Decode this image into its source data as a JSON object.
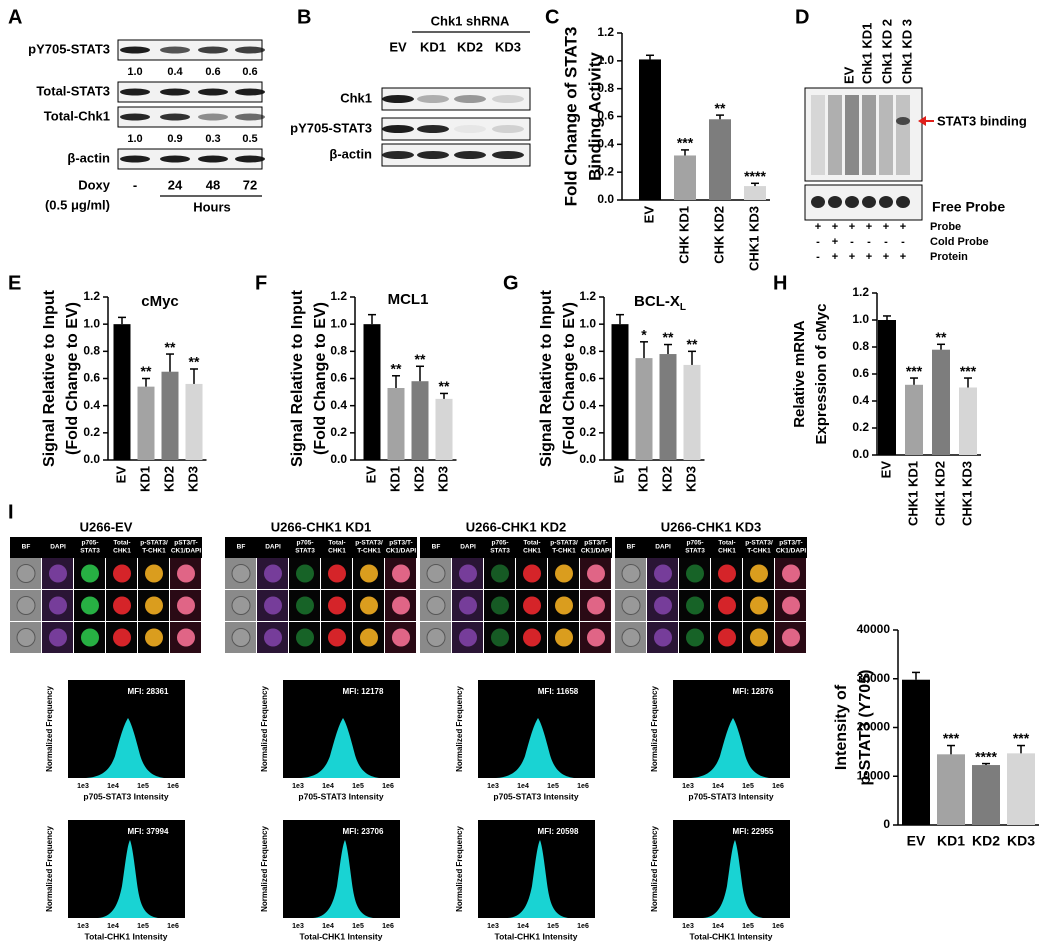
{
  "panel_labels": [
    "A",
    "B",
    "C",
    "D",
    "E",
    "F",
    "G",
    "H",
    "I"
  ],
  "panel_a": {
    "rows": [
      "pY705-STAT3",
      "Total-STAT3",
      "Total-Chk1",
      "β-actin"
    ],
    "quant_py705": [
      "1.0",
      "0.4",
      "0.6",
      "0.6"
    ],
    "quant_chk1": [
      "1.0",
      "0.9",
      "0.3",
      "0.5"
    ],
    "treatment": "Doxy",
    "dose": "(0.5 μg/ml)",
    "times": [
      "-",
      "24",
      "48",
      "72"
    ],
    "time_unit": "Hours"
  },
  "panel_b": {
    "group": "Chk1 shRNA",
    "lanes": [
      "EV",
      "KD1",
      "KD2",
      "KD3"
    ],
    "rows": [
      "Chk1",
      "pY705-STAT3",
      "β-actin"
    ]
  },
  "panel_d": {
    "lanes": [
      "EV",
      "Chk1 KD1",
      "Chk1 KD 2",
      "Chk1 KD 3"
    ],
    "band_label": "STAT3 binding",
    "free_probe": "Free Probe",
    "conditions": [
      {
        "name": "Probe",
        "signs": [
          "+",
          "+",
          "+",
          "+",
          "+",
          "+"
        ]
      },
      {
        "name": "Cold Probe",
        "signs": [
          "-",
          "+",
          "-",
          "-",
          "-",
          "-"
        ]
      },
      {
        "name": "Protein",
        "signs": [
          "-",
          "+",
          "+",
          "+",
          "+",
          "+"
        ]
      }
    ]
  },
  "chart_data": [
    {
      "type": "bar",
      "ylabel": [
        "Fold Change of STAT3",
        "Binding Activity"
      ],
      "categories": [
        "EV",
        "CHK KD1",
        "CHK KD2",
        "CHK1 KD3"
      ],
      "values": [
        1.01,
        0.32,
        0.58,
        0.1
      ],
      "errors": [
        0.03,
        0.04,
        0.03,
        0.02
      ],
      "significance": [
        null,
        "***",
        "**",
        "****"
      ],
      "colors": [
        "#000000",
        "#a3a3a3",
        "#7d7d7d",
        "#d6d6d6"
      ],
      "ylim": [
        0,
        1.2
      ],
      "yticks": [
        {
          "value": 0,
          "label": "0.0"
        },
        0.2,
        0.4,
        0.6,
        0.8,
        {
          "value": 1,
          "label": "1.0"
        },
        1.2
      ]
    },
    {
      "type": "bar",
      "title": "cMyc",
      "ylabel": [
        "Signal Relative to Input",
        "(Fold Change to EV)"
      ],
      "categories": [
        "EV",
        "KD1",
        "KD2",
        "KD3"
      ],
      "values": [
        1.0,
        0.54,
        0.65,
        0.56
      ],
      "errors": [
        0.05,
        0.06,
        0.13,
        0.11
      ],
      "significance": [
        null,
        "**",
        "**",
        "**"
      ],
      "colors": [
        "#000000",
        "#a3a3a3",
        "#7d7d7d",
        "#d6d6d6"
      ],
      "ylim": [
        0,
        1.2
      ],
      "yticks": [
        {
          "value": 0,
          "label": "0.0"
        },
        0.2,
        0.4,
        0.6,
        0.8,
        {
          "value": 1,
          "label": "1.0"
        },
        1.2
      ]
    },
    {
      "type": "bar",
      "title": "MCL1",
      "ylabel": [
        "Signal Relative to Input",
        "(Fold Change to EV)"
      ],
      "categories": [
        "EV",
        "KD1",
        "KD2",
        "KD3"
      ],
      "values": [
        1.0,
        0.53,
        0.58,
        0.45
      ],
      "errors": [
        0.07,
        0.09,
        0.11,
        0.04
      ],
      "significance": [
        null,
        "**",
        "**",
        "**"
      ],
      "colors": [
        "#000000",
        "#a3a3a3",
        "#7d7d7d",
        "#d6d6d6"
      ],
      "ylim": [
        0,
        1.2
      ],
      "yticks": [
        {
          "value": 0,
          "label": "0.0"
        },
        0.2,
        0.4,
        0.6,
        0.8,
        {
          "value": 1,
          "label": "1.0"
        },
        1.2
      ]
    },
    {
      "type": "bar",
      "title": "BCL-X",
      "title_subscript": "L",
      "ylabel": [
        "Signal Relative to Input",
        "(Fold Change to EV)"
      ],
      "categories": [
        "EV",
        "KD1",
        "KD2",
        "KD3"
      ],
      "values": [
        1.0,
        0.75,
        0.78,
        0.7
      ],
      "errors": [
        0.07,
        0.12,
        0.07,
        0.1
      ],
      "significance": [
        null,
        "*",
        "**",
        "**"
      ],
      "colors": [
        "#000000",
        "#a3a3a3",
        "#7d7d7d",
        "#d6d6d6"
      ],
      "ylim": [
        0,
        1.2
      ],
      "yticks": [
        {
          "value": 0,
          "label": "0.0"
        },
        0.2,
        0.4,
        0.6,
        0.8,
        {
          "value": 1,
          "label": "1.0"
        },
        1.2
      ]
    },
    {
      "type": "bar",
      "ylabel": [
        "Relative mRNA",
        "Expression of cMyc"
      ],
      "categories": [
        "EV",
        "CHK1 KD1",
        "CHK1 KD2",
        "CHK1 KD3"
      ],
      "values": [
        1.0,
        0.52,
        0.78,
        0.5
      ],
      "errors": [
        0.03,
        0.05,
        0.04,
        0.07
      ],
      "significance": [
        null,
        "***",
        "**",
        "***"
      ],
      "colors": [
        "#000000",
        "#a3a3a3",
        "#7d7d7d",
        "#d6d6d6"
      ],
      "ylim": [
        0,
        1.2
      ],
      "yticks": [
        {
          "value": 0,
          "label": "0.0"
        },
        0.2,
        0.4,
        0.6,
        0.8,
        {
          "value": 1,
          "label": "1.0"
        },
        1.2
      ]
    },
    {
      "type": "bar",
      "ylabel": [
        "Intensity of",
        "p-STAT3 (Y705)"
      ],
      "categories": [
        "EV",
        "KD1",
        "KD2",
        "KD3"
      ],
      "values": [
        29800,
        14500,
        12300,
        14700
      ],
      "errors": [
        1500,
        1800,
        300,
        1600
      ],
      "significance": [
        null,
        "***",
        "****",
        "***"
      ],
      "colors": [
        "#000000",
        "#a3a3a3",
        "#7d7d7d",
        "#d6d6d6"
      ],
      "ylim": [
        0,
        40000
      ],
      "yticks": [
        0,
        10000,
        20000,
        30000,
        40000
      ]
    }
  ],
  "panel_i": {
    "samples": [
      {
        "title": "U266-EV",
        "mfi_stat3": "MFI: 28361",
        "mfi_chk1": "MFI: 37994"
      },
      {
        "title": "U266-CHK1 KD1",
        "mfi_stat3": "MFI: 12178",
        "mfi_chk1": "MFI: 23706"
      },
      {
        "title": "U266-CHK1 KD2",
        "mfi_stat3": "MFI: 11658",
        "mfi_chk1": "MFI: 20598"
      },
      {
        "title": "U266-CHK1 KD3",
        "mfi_stat3": "MFI: 12876",
        "mfi_chk1": "MFI: 22955"
      }
    ],
    "channels": [
      [
        "BF"
      ],
      [
        "DAPI"
      ],
      [
        "p705-",
        "STAT3"
      ],
      [
        "Total-",
        "CHK1"
      ],
      [
        "p-STAT3/",
        "T-CHK1"
      ],
      [
        "pST3/T-",
        "CK1/DAPI"
      ]
    ],
    "hist_ylabel": "Normalized Frequency",
    "hist_xlabel_stat3": "p705-STAT3 Intensity",
    "hist_xlabel_chk1": "Total-CHK1 Intensity",
    "hist_xticks": [
      "1e3",
      "1e4",
      "1e5",
      "1e6"
    ]
  }
}
